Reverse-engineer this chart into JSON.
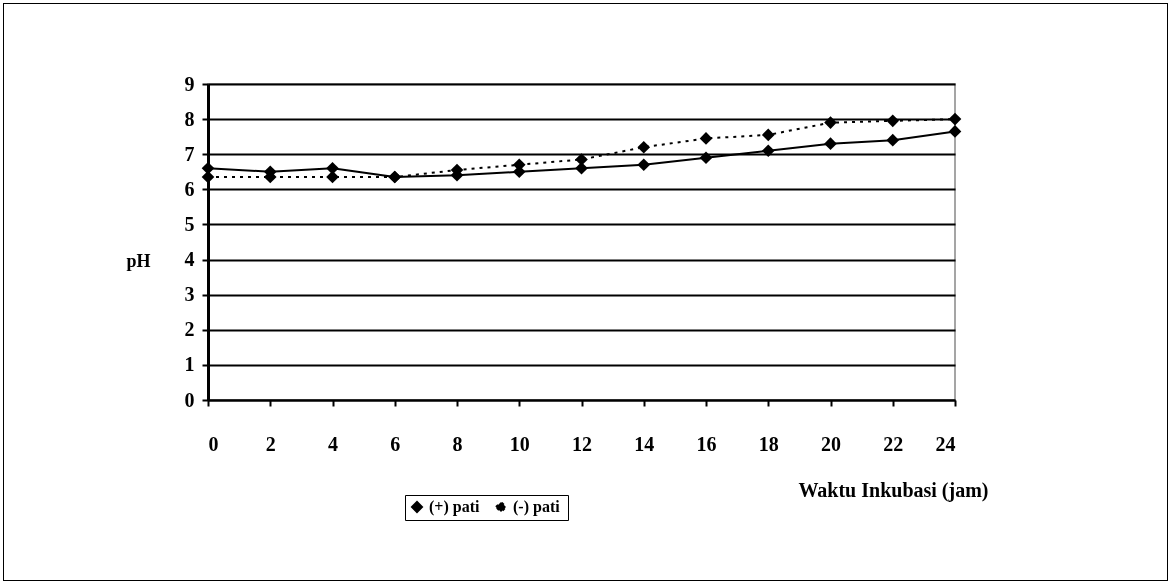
{
  "chart_data": {
    "type": "line",
    "xlabel": "Waktu Inkubasi (jam)",
    "ylabel": "pH",
    "x": [
      0,
      2,
      4,
      6,
      8,
      10,
      12,
      14,
      16,
      18,
      20,
      22,
      24
    ],
    "series": [
      {
        "name": "(+) pati",
        "color": "#000000",
        "line_style": "solid",
        "values": [
          6.6,
          6.5,
          6.6,
          6.35,
          6.4,
          6.5,
          6.6,
          6.7,
          6.9,
          7.1,
          7.3,
          7.4,
          7.65
        ]
      },
      {
        "name": "(-)  pati",
        "color": "#000000",
        "line_style": "dotted",
        "values": [
          6.35,
          6.35,
          6.35,
          6.35,
          6.55,
          6.7,
          6.85,
          7.2,
          7.45,
          7.55,
          7.9,
          7.95,
          8.0
        ]
      }
    ],
    "xlim": [
      0,
      24
    ],
    "xticks": [
      0,
      2,
      4,
      6,
      8,
      10,
      12,
      14,
      16,
      18,
      20,
      22,
      24
    ],
    "ylim": [
      0,
      9
    ],
    "yticks": [
      0,
      1,
      2,
      3,
      4,
      5,
      6,
      7,
      8,
      9
    ],
    "grid": "y",
    "legend": "bottom",
    "marker": "diamond"
  }
}
